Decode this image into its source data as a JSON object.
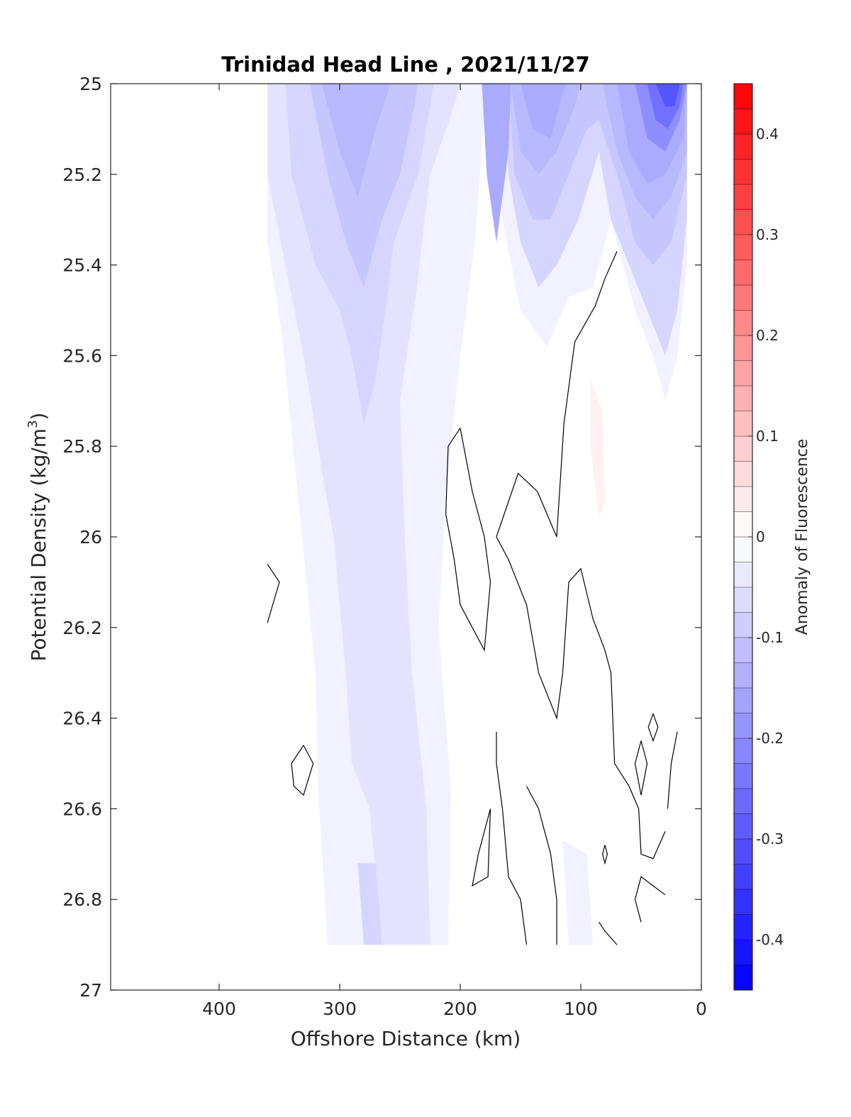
{
  "chart_data": {
    "type": "heatmap",
    "title": "Trinidad Head Line , 2021/11/27",
    "xlabel": "Offshore Distance (km)",
    "ylabel_main": "Potential Density (kg/m",
    "ylabel_sup": "3",
    "ylabel_end": ")",
    "colorbar_label": "Anomaly of Fluorescence",
    "x_reversed": true,
    "xlim": [
      0,
      490
    ],
    "ylim": [
      25,
      27
    ],
    "y_reversed": true,
    "x_ticks": [
      {
        "value": 400,
        "label": "400"
      },
      {
        "value": 300,
        "label": "300"
      },
      {
        "value": 200,
        "label": "200"
      },
      {
        "value": 100,
        "label": "100"
      },
      {
        "value": 0,
        "label": "0"
      }
    ],
    "y_ticks": [
      {
        "value": 25,
        "label": "25"
      },
      {
        "value": 25.2,
        "label": "25.2"
      },
      {
        "value": 25.4,
        "label": "25.4"
      },
      {
        "value": 25.6,
        "label": "25.6"
      },
      {
        "value": 25.8,
        "label": "25.8"
      },
      {
        "value": 26,
        "label": "26"
      },
      {
        "value": 26.2,
        "label": "26.2"
      },
      {
        "value": 26.4,
        "label": "26.4"
      },
      {
        "value": 26.6,
        "label": "26.6"
      },
      {
        "value": 26.8,
        "label": "26.8"
      },
      {
        "value": 27,
        "label": "27"
      }
    ],
    "colorbar": {
      "range": [
        -0.45,
        0.45
      ],
      "levels": 36,
      "negative_color": "#0000ff",
      "positive_color": "#ff0000",
      "zero_color": "#ffffff",
      "ticks": [
        {
          "value": 0.4,
          "label": "0.4"
        },
        {
          "value": 0.3,
          "label": "0.3"
        },
        {
          "value": 0.2,
          "label": "0.2"
        },
        {
          "value": 0.1,
          "label": "0.1"
        },
        {
          "value": 0,
          "label": "0"
        },
        {
          "value": -0.1,
          "label": "-0.1"
        },
        {
          "value": -0.2,
          "label": "-0.2"
        },
        {
          "value": -0.3,
          "label": "-0.3"
        },
        {
          "value": -0.4,
          "label": "-0.4"
        }
      ]
    },
    "filled_regions": [
      {
        "anomaly": -0.025,
        "points": [
          [
            360,
            25
          ],
          [
            360,
            25.35
          ],
          [
            348,
            25.55
          ],
          [
            335,
            25.9
          ],
          [
            320,
            26.3
          ],
          [
            318,
            26.55
          ],
          [
            310,
            26.9
          ],
          [
            210,
            26.9
          ],
          [
            208,
            26.55
          ],
          [
            218,
            26.2
          ],
          [
            212,
            25.9
          ],
          [
            200,
            25.6
          ],
          [
            188,
            25.35
          ],
          [
            178,
            25.0
          ]
        ]
      },
      {
        "anomaly": -0.025,
        "points": [
          [
            168,
            25
          ],
          [
            165,
            25.3
          ],
          [
            150,
            25.5
          ],
          [
            128,
            25.58
          ],
          [
            110,
            25.47
          ],
          [
            90,
            25.45
          ],
          [
            75,
            25.3
          ],
          [
            55,
            25.5
          ],
          [
            40,
            25.6
          ],
          [
            30,
            25.7
          ],
          [
            20,
            25.6
          ],
          [
            12,
            25.4
          ],
          [
            12,
            25
          ]
        ]
      },
      {
        "anomaly": -0.025,
        "points": [
          [
            115,
            26.67
          ],
          [
            110,
            26.9
          ],
          [
            90,
            26.9
          ],
          [
            95,
            26.7
          ]
        ]
      },
      {
        "anomaly": -0.05,
        "points": [
          [
            360,
            25
          ],
          [
            360,
            25.2
          ],
          [
            345,
            25.4
          ],
          [
            330,
            25.6
          ],
          [
            315,
            25.85
          ],
          [
            305,
            26.0
          ],
          [
            295,
            26.3
          ],
          [
            290,
            26.5
          ],
          [
            275,
            26.6
          ],
          [
            265,
            26.9
          ],
          [
            225,
            26.9
          ],
          [
            228,
            26.6
          ],
          [
            240,
            26.3
          ],
          [
            246,
            26.0
          ],
          [
            250,
            25.7
          ],
          [
            236,
            25.45
          ],
          [
            225,
            25.2
          ],
          [
            205,
            25.05
          ],
          [
            200,
            25
          ]
        ]
      },
      {
        "anomaly": -0.075,
        "points": [
          [
            345,
            25
          ],
          [
            340,
            25.2
          ],
          [
            320,
            25.4
          ],
          [
            300,
            25.5
          ],
          [
            290,
            25.6
          ],
          [
            280,
            25.75
          ],
          [
            270,
            25.65
          ],
          [
            262,
            25.5
          ],
          [
            255,
            25.35
          ],
          [
            235,
            25.2
          ],
          [
            225,
            25.05
          ],
          [
            222,
            25
          ]
        ]
      },
      {
        "anomaly": -0.075,
        "points": [
          [
            163,
            25
          ],
          [
            160,
            25.2
          ],
          [
            150,
            25.35
          ],
          [
            135,
            25.45
          ],
          [
            120,
            25.4
          ],
          [
            102,
            25.3
          ],
          [
            85,
            25.15
          ],
          [
            75,
            25.3
          ],
          [
            60,
            25.4
          ],
          [
            45,
            25.5
          ],
          [
            30,
            25.6
          ],
          [
            20,
            25.5
          ],
          [
            12,
            25.3
          ],
          [
            12,
            25
          ]
        ]
      },
      {
        "anomaly": -0.075,
        "points": [
          [
            285,
            26.72
          ],
          [
            280,
            26.9
          ],
          [
            265,
            26.9
          ],
          [
            270,
            26.72
          ]
        ]
      },
      {
        "anomaly": -0.1,
        "points": [
          [
            325,
            25
          ],
          [
            310,
            25.2
          ],
          [
            295,
            25.35
          ],
          [
            280,
            25.45
          ],
          [
            265,
            25.3
          ],
          [
            250,
            25.2
          ],
          [
            238,
            25.05
          ],
          [
            235,
            25
          ]
        ]
      },
      {
        "anomaly": -0.1,
        "points": [
          [
            160,
            25
          ],
          [
            155,
            25.2
          ],
          [
            140,
            25.3
          ],
          [
            125,
            25.3
          ],
          [
            110,
            25.2
          ],
          [
            95,
            25.1
          ],
          [
            85,
            25.08
          ],
          [
            70,
            25.2
          ],
          [
            55,
            25.35
          ],
          [
            40,
            25.4
          ],
          [
            25,
            25.35
          ],
          [
            12,
            25.2
          ],
          [
            12,
            25
          ]
        ]
      },
      {
        "anomaly": -0.125,
        "points": [
          [
            315,
            25
          ],
          [
            300,
            25.15
          ],
          [
            285,
            25.25
          ],
          [
            270,
            25.1
          ],
          [
            260,
            25.02
          ],
          [
            258,
            25
          ]
        ]
      },
      {
        "anomaly": -0.125,
        "points": [
          [
            158,
            25
          ],
          [
            150,
            25.15
          ],
          [
            135,
            25.2
          ],
          [
            120,
            25.15
          ],
          [
            105,
            25.05
          ],
          [
            100,
            25
          ]
        ]
      },
      {
        "anomaly": -0.125,
        "points": [
          [
            82,
            25
          ],
          [
            70,
            25.15
          ],
          [
            55,
            25.25
          ],
          [
            40,
            25.3
          ],
          [
            25,
            25.25
          ],
          [
            12,
            25.15
          ],
          [
            12,
            25
          ]
        ]
      },
      {
        "anomaly": -0.15,
        "points": [
          [
            182,
            25
          ],
          [
            178,
            25.2
          ],
          [
            170,
            25.35
          ],
          [
            160,
            25.15
          ],
          [
            158,
            25
          ]
        ]
      },
      {
        "anomaly": -0.15,
        "points": [
          [
            150,
            25
          ],
          [
            140,
            25.1
          ],
          [
            125,
            25.12
          ],
          [
            115,
            25.02
          ],
          [
            112,
            25
          ]
        ]
      },
      {
        "anomaly": -0.15,
        "points": [
          [
            70,
            25
          ],
          [
            60,
            25.15
          ],
          [
            45,
            25.22
          ],
          [
            30,
            25.2
          ],
          [
            15,
            25.12
          ],
          [
            12,
            25
          ]
        ]
      },
      {
        "anomaly": -0.2,
        "points": [
          [
            55,
            25
          ],
          [
            45,
            25.12
          ],
          [
            30,
            25.15
          ],
          [
            18,
            25.08
          ],
          [
            12,
            25
          ]
        ]
      },
      {
        "anomaly": -0.25,
        "points": [
          [
            45,
            25
          ],
          [
            38,
            25.08
          ],
          [
            28,
            25.1
          ],
          [
            18,
            25.05
          ],
          [
            15,
            25
          ]
        ]
      },
      {
        "anomaly": -0.3,
        "points": [
          [
            38,
            25
          ],
          [
            30,
            25.05
          ],
          [
            22,
            25.05
          ],
          [
            18,
            25
          ]
        ]
      },
      {
        "anomaly": 0.025,
        "points": [
          [
            92,
            25.65
          ],
          [
            82,
            25.72
          ],
          [
            80,
            25.92
          ],
          [
            85,
            25.96
          ],
          [
            92,
            25.8
          ]
        ]
      }
    ],
    "contour_lines": [
      [
        [
          360,
          26.06
        ],
        [
          350,
          26.1
        ],
        [
          360,
          26.19
        ]
      ],
      [
        [
          330,
          26.46
        ],
        [
          340,
          26.5
        ],
        [
          338,
          26.55
        ],
        [
          330,
          26.57
        ],
        [
          322,
          26.5
        ],
        [
          330,
          26.46
        ]
      ],
      [
        [
          40,
          26.39
        ],
        [
          44,
          26.42
        ],
        [
          40,
          26.45
        ],
        [
          36,
          26.42
        ],
        [
          40,
          26.39
        ]
      ],
      [
        [
          50,
          26.45
        ],
        [
          55,
          26.5
        ],
        [
          50,
          26.57
        ],
        [
          45,
          26.5
        ],
        [
          50,
          26.45
        ]
      ],
      [
        [
          80,
          26.68
        ],
        [
          82,
          26.7
        ],
        [
          80,
          26.72
        ],
        [
          78,
          26.7
        ],
        [
          80,
          26.68
        ]
      ],
      [
        [
          175,
          26.6
        ],
        [
          185,
          26.7
        ],
        [
          190,
          26.77
        ],
        [
          177,
          26.75
        ],
        [
          175,
          26.6
        ]
      ],
      [
        [
          70,
          25.37
        ],
        [
          80,
          25.43
        ],
        [
          88,
          25.49
        ],
        [
          105,
          25.57
        ],
        [
          114,
          25.75
        ],
        [
          120,
          26.0
        ],
        [
          136,
          25.9
        ],
        [
          152,
          25.86
        ],
        [
          170,
          26.0
        ],
        [
          160,
          26.05
        ],
        [
          145,
          26.15
        ],
        [
          135,
          26.3
        ],
        [
          120,
          26.4
        ],
        [
          115,
          26.3
        ],
        [
          110,
          26.1
        ],
        [
          100,
          26.07
        ],
        [
          90,
          26.18
        ],
        [
          80,
          26.25
        ],
        [
          75,
          26.3
        ],
        [
          72,
          26.5
        ],
        [
          60,
          26.55
        ],
        [
          52,
          26.6
        ],
        [
          50,
          26.7
        ],
        [
          40,
          26.71
        ],
        [
          30,
          26.65
        ]
      ],
      [
        [
          200,
          25.76
        ],
        [
          210,
          25.8
        ],
        [
          212,
          25.95
        ],
        [
          205,
          26.05
        ],
        [
          200,
          26.15
        ],
        [
          190,
          26.2
        ],
        [
          180,
          26.25
        ],
        [
          175,
          26.1
        ],
        [
          180,
          26.0
        ],
        [
          190,
          25.9
        ],
        [
          200,
          25.76
        ]
      ],
      [
        [
          170,
          26.43
        ],
        [
          170,
          26.5
        ],
        [
          165,
          26.6
        ],
        [
          160,
          26.75
        ],
        [
          150,
          26.8
        ],
        [
          145,
          26.9
        ]
      ],
      [
        [
          120,
          26.9
        ],
        [
          120,
          26.8
        ],
        [
          125,
          26.7
        ],
        [
          135,
          26.6
        ],
        [
          145,
          26.55
        ]
      ],
      [
        [
          70,
          26.9
        ],
        [
          80,
          26.87
        ],
        [
          85,
          26.85
        ]
      ],
      [
        [
          50,
          26.85
        ],
        [
          55,
          26.8
        ],
        [
          50,
          26.75
        ],
        [
          40,
          26.77
        ],
        [
          30,
          26.79
        ]
      ],
      [
        [
          20,
          26.43
        ],
        [
          25,
          26.5
        ],
        [
          28,
          26.6
        ]
      ]
    ]
  }
}
